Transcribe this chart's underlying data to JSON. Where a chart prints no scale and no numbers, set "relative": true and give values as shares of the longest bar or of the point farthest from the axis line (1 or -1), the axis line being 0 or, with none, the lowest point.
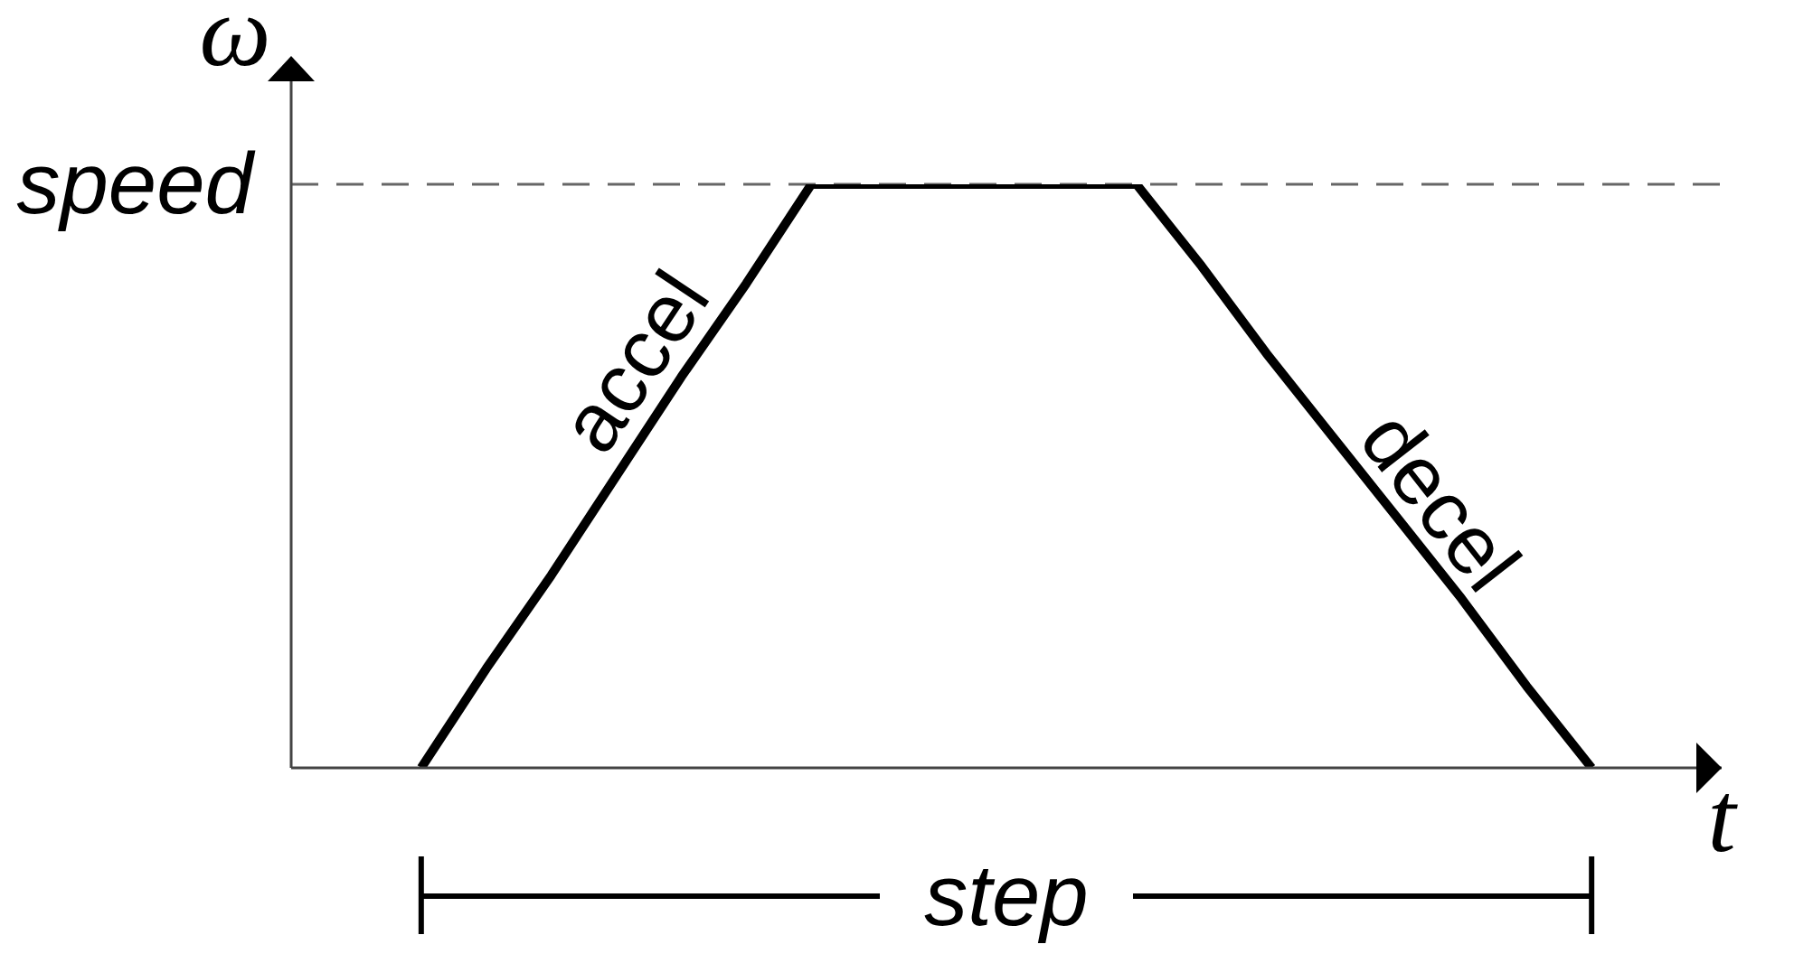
{
  "chart_data": {
    "type": "line",
    "xlabel": "t",
    "ylabel": "ω",
    "relative": true,
    "categories": [
      null,
      null,
      null,
      null,
      null,
      null,
      null,
      null,
      null,
      null,
      null,
      null,
      null,
      null,
      null,
      null,
      null,
      null,
      null,
      null,
      null,
      null,
      null
    ],
    "values": [
      null,
      null,
      0,
      0.17,
      0.33,
      0.5,
      0.67,
      0.83,
      1,
      1,
      1,
      1,
      1,
      1,
      0.86,
      0.71,
      0.57,
      0.43,
      0.29,
      0.14,
      0,
      null,
      null
    ],
    "color": "#000000",
    "ref_lines": [
      {
        "axis": "y",
        "value": 1,
        "label": "speed",
        "color": "#666666",
        "line_style": "dashed"
      }
    ],
    "annotations": [
      "accel",
      "decel",
      "step"
    ],
    "grid": false,
    "legend": false,
    "marker": "none",
    "line_style": "solid"
  }
}
